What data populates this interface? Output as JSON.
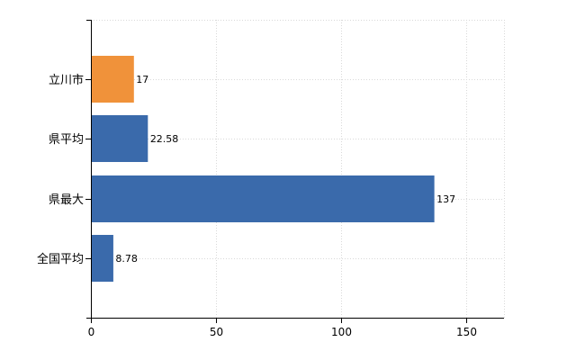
{
  "chart_data": {
    "type": "bar",
    "orientation": "horizontal",
    "categories": [
      "立川市",
      "県平均",
      "県最大",
      "全国平均"
    ],
    "values": [
      17,
      22.58,
      137,
      8.78
    ],
    "value_labels": [
      "17",
      "22.58",
      "137",
      "8.78"
    ],
    "bar_colors": [
      "#f0923a",
      "#3a6aab",
      "#3a6aab",
      "#3a6aab"
    ],
    "xlim": [
      0,
      165
    ],
    "xticks": [
      0,
      50,
      100,
      150
    ],
    "xtick_labels": [
      "0",
      "50",
      "100",
      "150"
    ],
    "grid": true,
    "legend": "none"
  }
}
